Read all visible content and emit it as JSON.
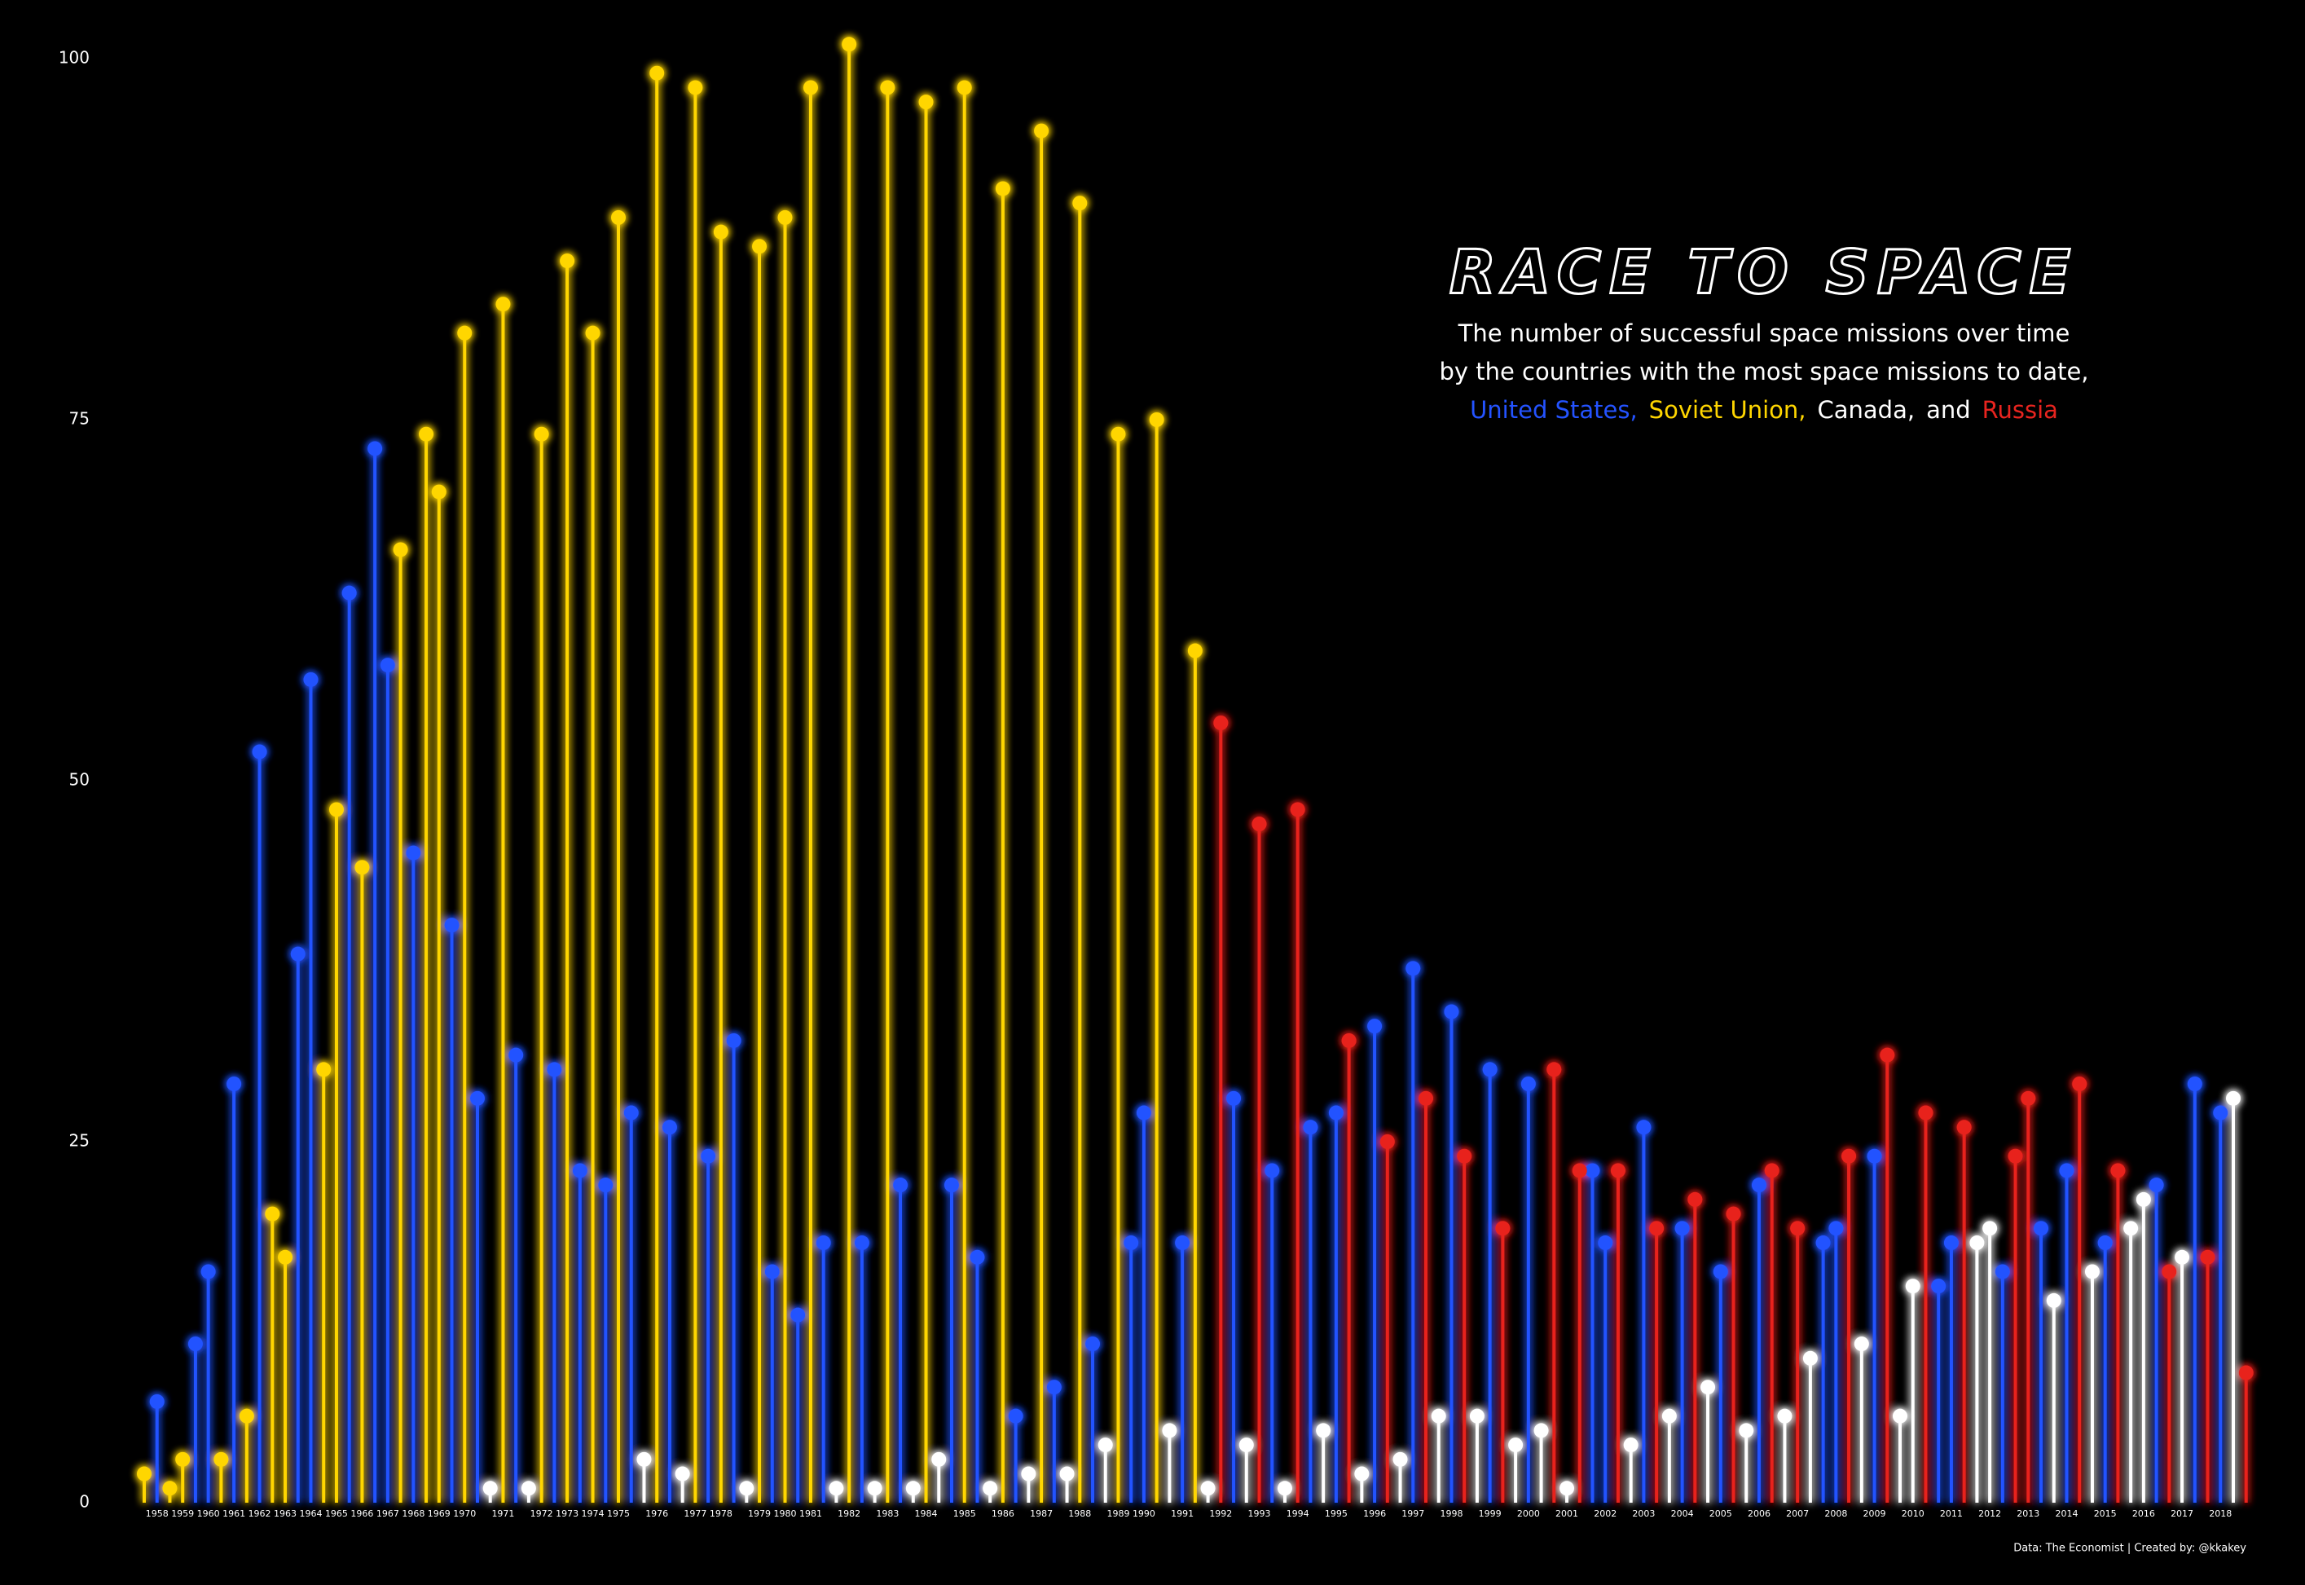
{
  "chart_data": {
    "type": "lollipop",
    "title": "RACE TO SPACE",
    "subtitle": [
      "The number of successful space missions over time",
      "by the countries with the most space missions to date,"
    ],
    "legend_connector": "and",
    "source": "Data: The Economist | Created by: @kkakey",
    "ylim": [
      0,
      100
    ],
    "yticks": [
      0,
      25,
      50,
      75,
      100
    ],
    "grid": false,
    "categories": [
      null,
      "1958",
      null,
      "1959",
      null,
      "1960",
      null,
      "1961",
      null,
      "1962",
      null,
      "1963",
      null,
      "1964",
      null,
      "1965",
      null,
      "1966",
      null,
      "1967",
      null,
      "1968",
      null,
      "1969",
      null,
      "1970",
      null,
      null,
      "1971",
      null,
      null,
      "1972",
      null,
      "1973",
      null,
      "1974",
      null,
      "1975",
      null,
      null,
      "1976",
      null,
      null,
      "1977",
      null,
      "1978",
      null,
      null,
      "1979",
      null,
      "1980",
      null,
      "1981",
      null,
      null,
      "1982",
      null,
      null,
      "1983",
      null,
      null,
      "1984",
      null,
      null,
      "1985",
      null,
      null,
      "1986",
      null,
      null,
      "1987",
      null,
      null,
      "1988",
      null,
      null,
      "1989",
      null,
      "1990",
      null,
      null,
      "1991",
      null,
      null,
      "1992",
      null,
      null,
      "1993",
      null,
      null,
      "1994",
      null,
      null,
      "1995",
      null,
      null,
      "1996",
      null,
      null,
      "1997",
      null,
      null,
      "1998",
      null,
      null,
      "1999",
      null,
      null,
      "2000",
      null,
      null,
      "2001",
      null,
      null,
      "2002",
      null,
      null,
      "2003",
      null,
      null,
      "2004",
      null,
      null,
      "2005",
      null,
      null,
      "2006",
      null,
      null,
      "2007",
      null,
      null,
      "2008",
      null,
      null,
      "2009",
      null,
      null,
      "2010",
      null,
      null,
      "2011",
      null,
      null,
      "2012",
      null,
      null,
      "2013",
      null,
      null,
      "2014",
      null,
      null,
      "2015",
      null,
      null,
      "2016",
      null,
      null,
      "2017",
      null,
      null,
      "2018",
      null,
      null
    ],
    "series": [
      {
        "name": "United States,",
        "color": "#2453ff",
        "values": [
          null,
          7,
          null,
          null,
          11,
          16,
          null,
          29,
          null,
          52,
          null,
          null,
          38,
          57,
          null,
          null,
          63,
          null,
          73,
          58,
          null,
          45,
          null,
          null,
          40,
          null,
          28,
          null,
          null,
          31,
          null,
          null,
          30,
          null,
          23,
          null,
          22,
          null,
          27,
          null,
          null,
          26,
          null,
          null,
          24,
          null,
          32,
          null,
          null,
          16,
          null,
          13,
          null,
          18,
          null,
          null,
          18,
          null,
          null,
          22,
          null,
          null,
          null,
          22,
          null,
          17,
          null,
          null,
          6,
          null,
          null,
          8,
          null,
          null,
          11,
          null,
          null,
          18,
          27,
          null,
          null,
          18,
          null,
          null,
          null,
          28,
          null,
          null,
          23,
          null,
          null,
          26,
          null,
          27,
          null,
          null,
          33,
          null,
          null,
          37,
          null,
          null,
          34,
          null,
          null,
          30,
          null,
          null,
          29,
          null,
          null,
          null,
          null,
          23,
          18,
          null,
          null,
          26,
          null,
          null,
          19,
          null,
          null,
          16,
          null,
          null,
          22,
          null,
          null,
          null,
          null,
          18,
          19,
          null,
          null,
          24,
          null,
          null,
          null,
          null,
          15,
          18,
          null,
          null,
          null,
          16,
          null,
          null,
          19,
          null,
          23,
          null,
          null,
          18,
          null,
          null,
          null,
          22,
          null,
          null,
          29,
          null,
          27,
          null,
          null
        ]
      },
      {
        "name": "Soviet Union,",
        "color": "#ffd600",
        "values": [
          2,
          null,
          1,
          3,
          null,
          null,
          3,
          null,
          6,
          null,
          20,
          17,
          null,
          null,
          30,
          48,
          null,
          44,
          null,
          null,
          66,
          null,
          74,
          70,
          null,
          81,
          null,
          null,
          83,
          null,
          null,
          74,
          null,
          86,
          null,
          81,
          null,
          89,
          null,
          null,
          99,
          null,
          null,
          98,
          null,
          88,
          null,
          null,
          87,
          null,
          89,
          null,
          98,
          null,
          null,
          101,
          null,
          null,
          98,
          null,
          null,
          97,
          null,
          null,
          98,
          null,
          null,
          91,
          null,
          null,
          95,
          null,
          null,
          90,
          null,
          null,
          74,
          null,
          null,
          75,
          null,
          null,
          59,
          null,
          null,
          null,
          null,
          null,
          null,
          null,
          null,
          null,
          null,
          null,
          null,
          null,
          null,
          null,
          null,
          null,
          null,
          null,
          null,
          null,
          null,
          null,
          null,
          null,
          null,
          null,
          null,
          null,
          null,
          null,
          null,
          null,
          null,
          null,
          null,
          null,
          null,
          null,
          null,
          null,
          null,
          null,
          null,
          null,
          null,
          null,
          null,
          null,
          null,
          null,
          null,
          null,
          null,
          null,
          null,
          null,
          null,
          null,
          null,
          null,
          null,
          null,
          null,
          null,
          null,
          null,
          null,
          null,
          null,
          null,
          null,
          null,
          null,
          null,
          null,
          null,
          null,
          null,
          null,
          null,
          null
        ]
      },
      {
        "name": "Canada,",
        "color": "#ffffff",
        "values": [
          null,
          null,
          null,
          null,
          null,
          null,
          null,
          null,
          null,
          null,
          null,
          null,
          null,
          null,
          null,
          null,
          null,
          null,
          null,
          null,
          null,
          null,
          null,
          null,
          null,
          null,
          null,
          1,
          null,
          null,
          1,
          null,
          null,
          null,
          null,
          null,
          null,
          null,
          null,
          3,
          null,
          null,
          2,
          null,
          null,
          null,
          null,
          1,
          null,
          null,
          null,
          null,
          null,
          null,
          1,
          null,
          null,
          1,
          null,
          null,
          1,
          null,
          3,
          null,
          null,
          null,
          1,
          null,
          null,
          2,
          null,
          null,
          2,
          null,
          null,
          4,
          null,
          null,
          null,
          null,
          5,
          null,
          null,
          1,
          null,
          null,
          4,
          null,
          null,
          1,
          null,
          null,
          5,
          null,
          null,
          2,
          null,
          null,
          3,
          null,
          null,
          6,
          null,
          null,
          6,
          null,
          null,
          4,
          null,
          5,
          null,
          1,
          null,
          null,
          null,
          null,
          4,
          null,
          null,
          6,
          null,
          null,
          8,
          null,
          null,
          5,
          null,
          null,
          6,
          null,
          10,
          null,
          null,
          null,
          11,
          null,
          null,
          6,
          15,
          null,
          null,
          null,
          null,
          18,
          19,
          null,
          null,
          null,
          null,
          14,
          null,
          null,
          16,
          null,
          null,
          19,
          21,
          null,
          null,
          17,
          null,
          null,
          null,
          28,
          null
        ]
      },
      {
        "name": "Russia",
        "color": "#e8241f",
        "values": [
          null,
          null,
          null,
          null,
          null,
          null,
          null,
          null,
          null,
          null,
          null,
          null,
          null,
          null,
          null,
          null,
          null,
          null,
          null,
          null,
          null,
          null,
          null,
          null,
          null,
          null,
          null,
          null,
          null,
          null,
          null,
          null,
          null,
          null,
          null,
          null,
          null,
          null,
          null,
          null,
          null,
          null,
          null,
          null,
          null,
          null,
          null,
          null,
          null,
          null,
          null,
          null,
          null,
          null,
          null,
          null,
          null,
          null,
          null,
          null,
          null,
          null,
          null,
          null,
          null,
          null,
          null,
          null,
          null,
          null,
          null,
          null,
          null,
          null,
          null,
          null,
          null,
          null,
          null,
          null,
          null,
          null,
          null,
          null,
          54,
          null,
          null,
          47,
          null,
          null,
          48,
          null,
          null,
          null,
          32,
          null,
          null,
          25,
          null,
          null,
          28,
          null,
          null,
          24,
          null,
          null,
          19,
          null,
          null,
          null,
          30,
          null,
          23,
          null,
          null,
          23,
          null,
          null,
          19,
          null,
          null,
          21,
          null,
          null,
          20,
          null,
          null,
          23,
          null,
          19,
          null,
          null,
          null,
          24,
          null,
          null,
          31,
          null,
          null,
          27,
          null,
          null,
          26,
          null,
          null,
          null,
          24,
          28,
          null,
          null,
          null,
          29,
          null,
          null,
          23,
          null,
          null,
          null,
          16,
          null,
          null,
          17,
          null,
          null,
          9
        ]
      }
    ]
  }
}
